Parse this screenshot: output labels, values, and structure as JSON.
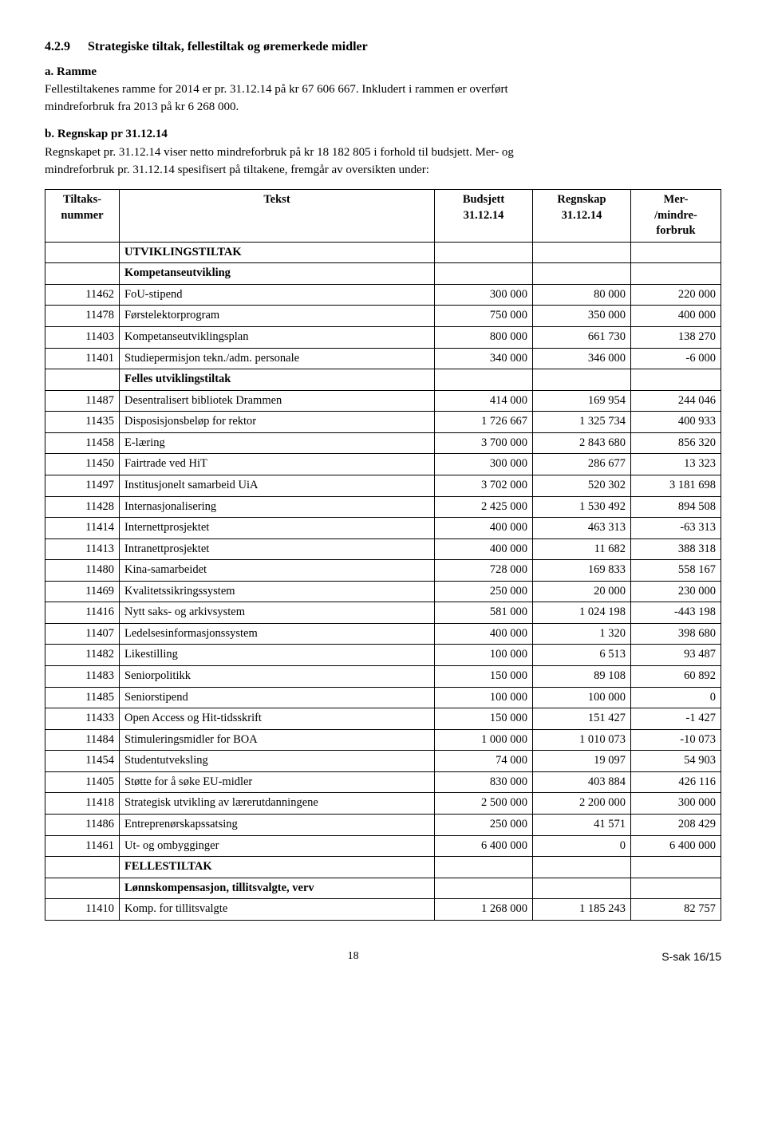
{
  "heading": {
    "number": "4.2.9",
    "title": "Strategiske tiltak, fellestiltak og øremerkede midler"
  },
  "part_a": {
    "label": "a.  Ramme",
    "line1": "Fellestiltakenes ramme for 2014 er pr. 31.12.14 på kr 67 606 667. Inkludert i rammen er overført",
    "line2": "mindreforbruk fra 2013 på kr 6 268 000."
  },
  "part_b": {
    "label": "b.  Regnskap pr 31.12.14",
    "line1": "Regnskapet pr. 31.12.14 viser netto mindreforbruk på kr 18 182 805 i forhold til budsjett. Mer- og",
    "line2": "mindreforbruk pr. 31.12.14 spesifisert på tiltakene, fremgår av oversikten under:"
  },
  "table": {
    "columns": [
      "Tiltaks-\nnummer",
      "Tekst",
      "Budsjett\n31.12.14",
      "Regnskap\n31.12.14",
      "Mer-\n/mindre-\nforbruk"
    ],
    "col_align": [
      "center",
      "center",
      "center",
      "center",
      "center"
    ],
    "rows": [
      {
        "type": "group",
        "tekst": "UTVIKLINGSTILTAK"
      },
      {
        "type": "group",
        "tekst": "Kompetanseutvikling"
      },
      {
        "code": "11462",
        "tekst": "FoU-stipend",
        "b": "300 000",
        "r": "80 000",
        "m": "220 000"
      },
      {
        "code": "11478",
        "tekst": "Førstelektorprogram",
        "b": "750 000",
        "r": "350 000",
        "m": "400 000"
      },
      {
        "code": "11403",
        "tekst": "Kompetanseutviklingsplan",
        "b": "800 000",
        "r": "661 730",
        "m": "138 270"
      },
      {
        "code": "11401",
        "tekst": "Studiepermisjon tekn./adm. personale",
        "b": "340 000",
        "r": "346 000",
        "m": "-6 000"
      },
      {
        "type": "group",
        "tekst": "Felles utviklingstiltak"
      },
      {
        "code": "11487",
        "tekst": "Desentralisert bibliotek Drammen",
        "b": "414 000",
        "r": "169 954",
        "m": "244 046"
      },
      {
        "code": "11435",
        "tekst": "Disposisjonsbeløp for rektor",
        "b": "1 726 667",
        "r": "1 325 734",
        "m": "400 933"
      },
      {
        "code": "11458",
        "tekst": "E-læring",
        "b": "3 700 000",
        "r": "2 843 680",
        "m": "856 320"
      },
      {
        "code": "11450",
        "tekst": "Fairtrade ved HiT",
        "b": "300 000",
        "r": "286 677",
        "m": "13 323"
      },
      {
        "code": "11497",
        "tekst": "Institusjonelt samarbeid UiA",
        "b": "3 702 000",
        "r": "520 302",
        "m": "3 181 698"
      },
      {
        "code": "11428",
        "tekst": "Internasjonalisering",
        "b": "2 425 000",
        "r": "1 530 492",
        "m": "894 508"
      },
      {
        "code": "11414",
        "tekst": "Internettprosjektet",
        "b": "400 000",
        "r": "463 313",
        "m": "-63 313"
      },
      {
        "code": "11413",
        "tekst": "Intranettprosjektet",
        "b": "400 000",
        "r": "11 682",
        "m": "388 318"
      },
      {
        "code": "11480",
        "tekst": "Kina-samarbeidet",
        "b": "728 000",
        "r": "169 833",
        "m": "558 167"
      },
      {
        "code": "11469",
        "tekst": "Kvalitetssikringssystem",
        "b": "250 000",
        "r": "20 000",
        "m": "230 000"
      },
      {
        "code": "11416",
        "tekst": "Nytt saks- og arkivsystem",
        "b": "581 000",
        "r": "1 024 198",
        "m": "-443 198"
      },
      {
        "code": "11407",
        "tekst": "Ledelsesinformasjonssystem",
        "b": "400 000",
        "r": "1 320",
        "m": "398 680"
      },
      {
        "code": "11482",
        "tekst": "Likestilling",
        "b": "100 000",
        "r": "6 513",
        "m": "93 487"
      },
      {
        "code": "11483",
        "tekst": "Seniorpolitikk",
        "b": "150 000",
        "r": "89 108",
        "m": "60 892"
      },
      {
        "code": "11485",
        "tekst": "Seniorstipend",
        "b": "100 000",
        "r": "100 000",
        "m": "0"
      },
      {
        "code": "11433",
        "tekst": "Open Access og Hit-tidsskrift",
        "b": "150 000",
        "r": "151 427",
        "m": "-1 427"
      },
      {
        "code": "11484",
        "tekst": "Stimuleringsmidler for BOA",
        "b": "1 000 000",
        "r": "1 010 073",
        "m": "-10 073"
      },
      {
        "code": "11454",
        "tekst": "Studentutveksling",
        "b": "74 000",
        "r": "19 097",
        "m": "54 903"
      },
      {
        "code": "11405",
        "tekst": "Støtte for å søke EU-midler",
        "b": "830 000",
        "r": "403 884",
        "m": "426 116"
      },
      {
        "code": "11418",
        "tekst": "Strategisk utvikling av lærerutdanningene",
        "b": "2 500 000",
        "r": "2 200 000",
        "m": "300 000"
      },
      {
        "code": "11486",
        "tekst": "Entreprenørskapssatsing",
        "b": "250 000",
        "r": "41 571",
        "m": "208 429"
      },
      {
        "code": "11461",
        "tekst": "Ut- og ombygginger",
        "b": "6 400 000",
        "r": "0",
        "m": "6 400 000"
      },
      {
        "type": "group",
        "tekst": "FELLESTILTAK"
      },
      {
        "type": "group",
        "tekst": "Lønnskompensasjon, tillitsvalgte, verv"
      },
      {
        "code": "11410",
        "tekst": "Komp. for tillitsvalgte",
        "b": "1 268 000",
        "r": "1 185 243",
        "m": "82 757"
      }
    ]
  },
  "footer": {
    "page": "18",
    "ref": "S-sak 16/15"
  }
}
